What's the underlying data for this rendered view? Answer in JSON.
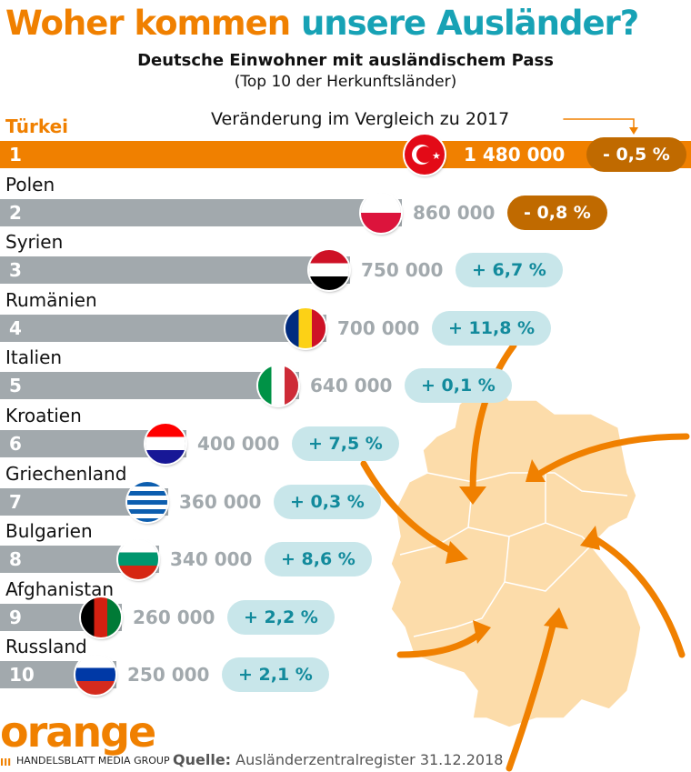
{
  "title": {
    "part1": "Woher kommen",
    "part2": "unsere Ausländer?"
  },
  "subtitle": "Deutsche Einwohner mit ausländischem Pass",
  "subtitle2": "(Top 10 der Herkunftsländer)",
  "change_label": "Veränderung im Vergleich zu 2017",
  "colors": {
    "orange": "#f08000",
    "teal": "#17a2b5",
    "bar": "#a2a9ad",
    "neg_pill": "#c06a00",
    "pos_pill": "#c8e6ea",
    "map": "#fcdcaa"
  },
  "chart_data": {
    "type": "bar",
    "orientation": "horizontal",
    "title": "Woher kommen unsere Ausländer?",
    "categories": [
      "Türkei",
      "Polen",
      "Syrien",
      "Rumänien",
      "Italien",
      "Kroatien",
      "Griechenland",
      "Bulgarien",
      "Afghanistan",
      "Russland"
    ],
    "ranks": [
      "1",
      "2",
      "3",
      "4",
      "5",
      "6",
      "7",
      "8",
      "9",
      "10"
    ],
    "values": [
      1480000,
      860000,
      750000,
      700000,
      640000,
      400000,
      360000,
      340000,
      260000,
      250000
    ],
    "value_labels": [
      "1 480 000",
      "860 000",
      "750 000",
      "700 000",
      "640 000",
      "400 000",
      "360 000",
      "340 000",
      "260 000",
      "250 000"
    ],
    "change_pct": [
      -0.5,
      -0.8,
      6.7,
      11.8,
      0.1,
      7.5,
      0.3,
      8.6,
      2.2,
      2.1
    ],
    "change_labels": [
      "- 0,5 %",
      "- 0,8 %",
      "+ 6,7 %",
      "+ 11,8 %",
      "+ 0,1 %",
      "+ 7,5 %",
      "+ 0,3 %",
      "+ 8,6 %",
      "+ 2,2 %",
      "+ 2,1 %"
    ],
    "flags": [
      "turkey-flag",
      "poland-flag",
      "syria-flag",
      "romania-flag",
      "italy-flag",
      "croatia-flag",
      "greece-flag",
      "bulgaria-flag",
      "afghanistan-flag",
      "russia-flag"
    ]
  },
  "footer": {
    "logo": "orange",
    "group": "HANDELSBLATT MEDIA GROUP",
    "source_label": "Quelle:",
    "source": "Ausländerzentralregister 31.12.2018"
  }
}
